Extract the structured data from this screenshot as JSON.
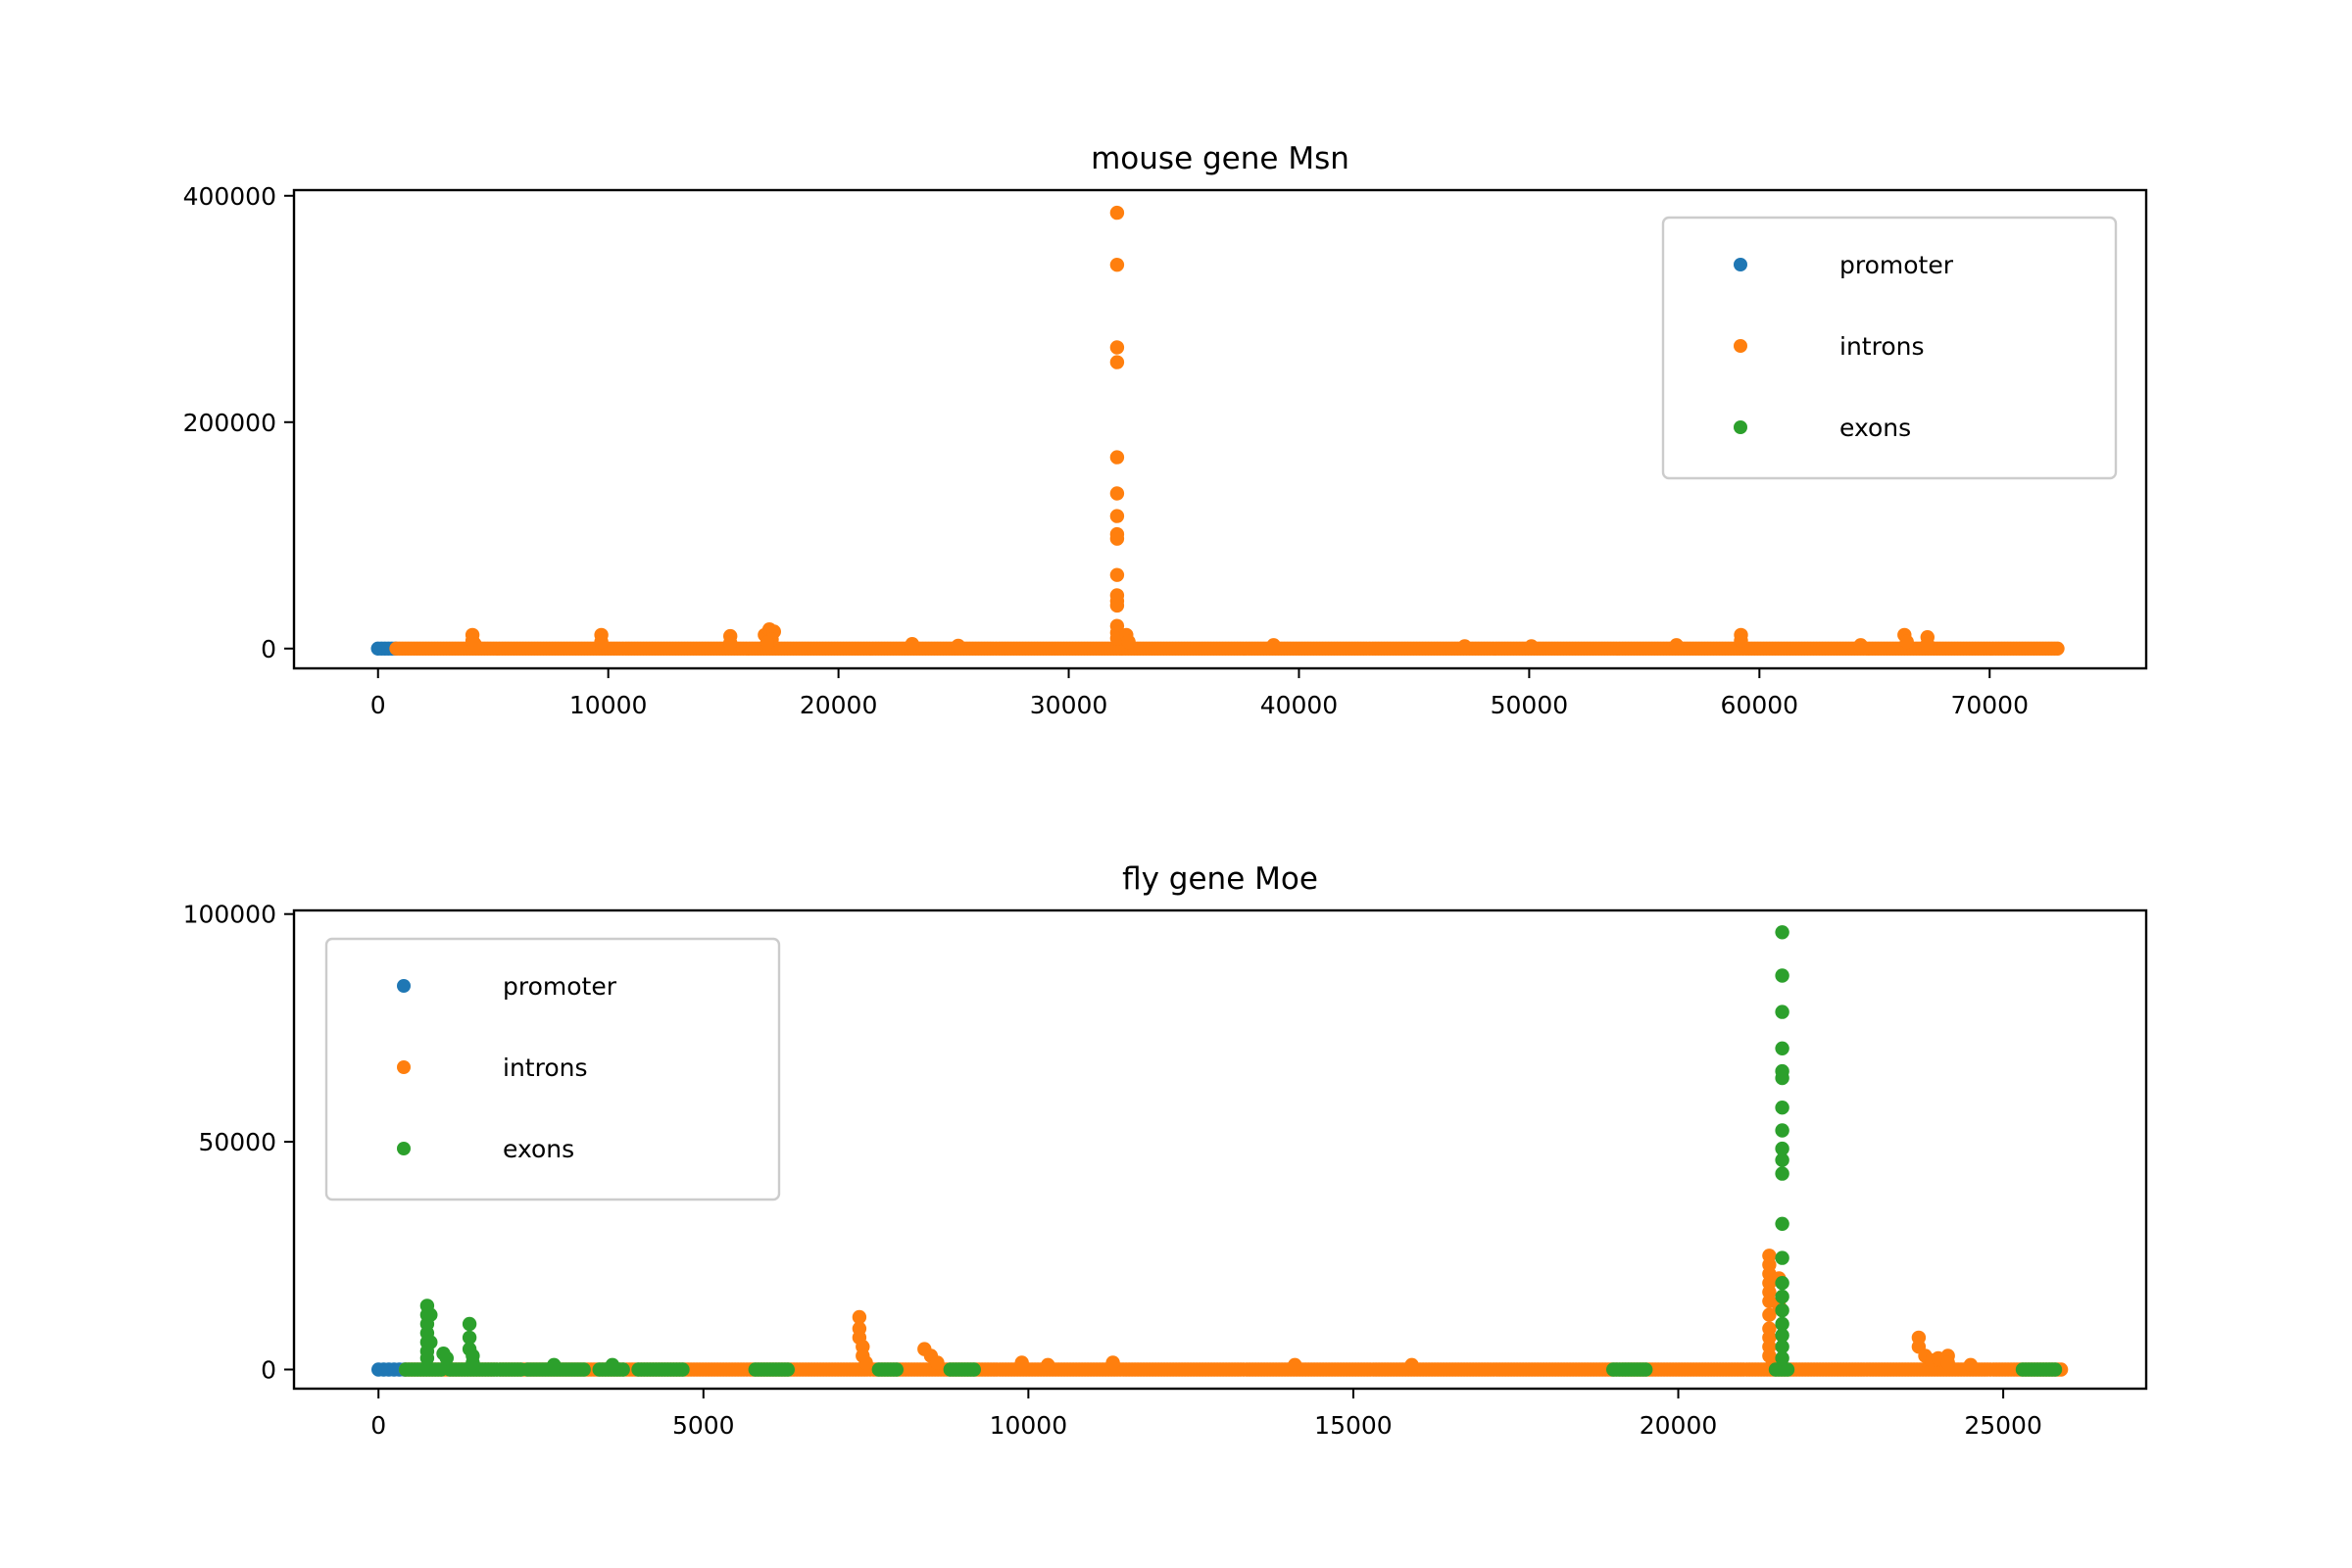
{
  "chart_data": [
    {
      "type": "scatter",
      "title": "mouse gene Msn",
      "xlabel": "",
      "ylabel": "",
      "xlim": [
        -3650,
        76800
      ],
      "ylim": [
        -17500,
        405000
      ],
      "xticks": [
        0,
        10000,
        20000,
        30000,
        40000,
        50000,
        60000,
        70000
      ],
      "yticks": [
        0,
        200000,
        400000
      ],
      "grid": false,
      "legend": {
        "placement": "upper right",
        "entries": [
          "promoter",
          "introns",
          "exons"
        ]
      },
      "series": [
        {
          "name": "promoter",
          "color": "#1f77b4",
          "points": [
            [
              0,
              0
            ],
            [
              150,
              0
            ],
            [
              300,
              0
            ],
            [
              450,
              0
            ],
            [
              600,
              0
            ],
            [
              750,
              0
            ]
          ]
        },
        {
          "name": "introns",
          "color": "#ff7f0e",
          "baseline_x_range": [
            800,
            73000
          ],
          "points": [
            [
              4100,
              12000
            ],
            [
              4100,
              7000
            ],
            [
              4200,
              4000
            ],
            [
              9700,
              12000
            ],
            [
              9700,
              6000
            ],
            [
              15300,
              11000
            ],
            [
              15300,
              5000
            ],
            [
              16800,
              12000
            ],
            [
              17000,
              17000
            ],
            [
              17200,
              15000
            ],
            [
              17100,
              8000
            ],
            [
              16900,
              5000
            ],
            [
              23200,
              4000
            ],
            [
              25200,
              2500
            ],
            [
              32100,
              385000
            ],
            [
              32100,
              339000
            ],
            [
              32100,
              266000
            ],
            [
              32100,
              253000
            ],
            [
              32100,
              169000
            ],
            [
              32100,
              137000
            ],
            [
              32100,
              117000
            ],
            [
              32100,
              101000
            ],
            [
              32100,
              97000
            ],
            [
              32100,
              65000
            ],
            [
              32100,
              47000
            ],
            [
              32100,
              42000
            ],
            [
              32100,
              38000
            ],
            [
              32100,
              20000
            ],
            [
              32100,
              14000
            ],
            [
              32100,
              9000
            ],
            [
              32500,
              12000
            ],
            [
              32600,
              6000
            ],
            [
              38900,
              3000
            ],
            [
              47200,
              2000
            ],
            [
              50100,
              2000
            ],
            [
              56400,
              3000
            ],
            [
              59200,
              12000
            ],
            [
              59200,
              7000
            ],
            [
              64400,
              3000
            ],
            [
              66300,
              12000
            ],
            [
              66400,
              6000
            ],
            [
              67300,
              10000
            ],
            [
              67300,
              4000
            ]
          ]
        },
        {
          "name": "exons",
          "color": "#2ca02c",
          "points": []
        }
      ]
    },
    {
      "type": "scatter",
      "title": "fly gene Moe",
      "xlabel": "",
      "ylabel": "",
      "xlim": [
        -1300,
        27200
      ],
      "ylim": [
        -4200,
        100800
      ],
      "xticks": [
        0,
        5000,
        10000,
        15000,
        20000,
        25000
      ],
      "yticks": [
        0,
        50000,
        100000
      ],
      "grid": false,
      "legend": {
        "placement": "upper left",
        "entries": [
          "promoter",
          "introns",
          "exons"
        ]
      },
      "series": [
        {
          "name": "promoter",
          "color": "#1f77b4",
          "points": [
            [
              0,
              0
            ],
            [
              80,
              0
            ],
            [
              160,
              0
            ],
            [
              240,
              0
            ],
            [
              320,
              0
            ],
            [
              400,
              0
            ]
          ]
        },
        {
          "name": "introns",
          "color": "#ff7f0e",
          "baseline_x_range": [
            420,
            25900
          ],
          "points": [
            [
              7400,
              11500
            ],
            [
              7400,
              9000
            ],
            [
              7400,
              7000
            ],
            [
              7450,
              5000
            ],
            [
              7450,
              3000
            ],
            [
              7500,
              1500
            ],
            [
              8400,
              4500
            ],
            [
              8500,
              3000
            ],
            [
              8600,
              1500
            ],
            [
              9900,
              1500
            ],
            [
              10300,
              1000
            ],
            [
              11300,
              1500
            ],
            [
              14100,
              1000
            ],
            [
              15900,
              1000
            ],
            [
              21400,
              25000
            ],
            [
              21400,
              23000
            ],
            [
              21400,
              21000
            ],
            [
              21400,
              19000
            ],
            [
              21400,
              17000
            ],
            [
              21400,
              15000
            ],
            [
              21400,
              12000
            ],
            [
              21400,
              9000
            ],
            [
              21400,
              7000
            ],
            [
              21400,
              5000
            ],
            [
              21400,
              3000
            ],
            [
              21450,
              2000
            ],
            [
              21550,
              20000
            ],
            [
              21550,
              14000
            ],
            [
              23700,
              7000
            ],
            [
              23700,
              5000
            ],
            [
              23800,
              3000
            ],
            [
              23900,
              2000
            ],
            [
              24000,
              2500
            ],
            [
              24150,
              3000
            ],
            [
              24150,
              1500
            ],
            [
              24500,
              1000
            ]
          ]
        },
        {
          "name": "exons",
          "color": "#2ca02c",
          "points": [
            [
              750,
              14000
            ],
            [
              750,
              12000
            ],
            [
              750,
              10000
            ],
            [
              750,
              8000
            ],
            [
              750,
              6000
            ],
            [
              750,
              4000
            ],
            [
              750,
              2500
            ],
            [
              800,
              12000
            ],
            [
              800,
              6000
            ],
            [
              1000,
              3500
            ],
            [
              1050,
              2500
            ],
            [
              1400,
              10000
            ],
            [
              1400,
              7000
            ],
            [
              1400,
              4500
            ],
            [
              1450,
              3000
            ],
            [
              1450,
              1500
            ],
            [
              2700,
              1000
            ],
            [
              3600,
              1000
            ],
            [
              21600,
              96000
            ],
            [
              21600,
              86500
            ],
            [
              21600,
              78500
            ],
            [
              21600,
              70500
            ],
            [
              21600,
              65500
            ],
            [
              21600,
              64000
            ],
            [
              21600,
              57500
            ],
            [
              21600,
              52500
            ],
            [
              21600,
              48500
            ],
            [
              21600,
              46000
            ],
            [
              21600,
              43000
            ],
            [
              21600,
              32000
            ],
            [
              21600,
              24500
            ],
            [
              21600,
              19000
            ],
            [
              21600,
              16000
            ],
            [
              21600,
              13000
            ],
            [
              21600,
              10000
            ],
            [
              21600,
              7500
            ],
            [
              21600,
              5000
            ],
            [
              21600,
              2500
            ]
          ],
          "baseline_segments": [
            [
              420,
              1000
            ],
            [
              1100,
              2200
            ],
            [
              2300,
              3200
            ],
            [
              3400,
              3800
            ],
            [
              4000,
              4700
            ],
            [
              5800,
              6300
            ],
            [
              7700,
              8000
            ],
            [
              8800,
              9200
            ],
            [
              19000,
              19500
            ],
            [
              21500,
              21700
            ],
            [
              25300,
              25800
            ]
          ]
        }
      ]
    }
  ]
}
